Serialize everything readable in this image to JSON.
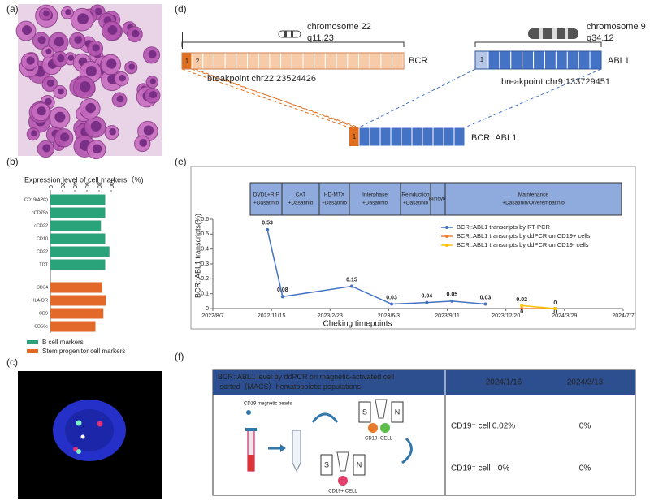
{
  "panel_labels": [
    "(a)",
    "(b)",
    "(c)",
    "(d)",
    "(e)",
    "(f)"
  ],
  "chart_data": [
    {
      "type": "hbar",
      "title": "Expression level of cell markers（%)",
      "categories": [
        "CD19(APC)",
        "cCD79a",
        "cCD22",
        "CD10",
        "CD22",
        "TDT",
        "CD34",
        "HLA-DR",
        "CD9",
        "CD56c"
      ],
      "series": [
        {
          "name": "B cell markers",
          "color": "#2aa37a",
          "values": [
            90,
            90,
            83,
            90,
            97,
            90,
            null,
            null,
            null,
            null
          ]
        },
        {
          "name": "Stem progenitor cell markers",
          "color": "#e2692a",
          "values": [
            null,
            null,
            null,
            null,
            null,
            null,
            85,
            91,
            87,
            74
          ]
        }
      ],
      "xlim": [
        0,
        100
      ],
      "xticks": [
        0,
        20,
        40,
        60,
        80,
        100
      ],
      "legend": "below"
    },
    {
      "type": "line",
      "ylabel": "BCR::ABL1 transcripts(%)",
      "xlabel": "Cheking timepoints",
      "x": [
        "2022/11/8",
        "2022/12/4",
        "2023/4/1",
        "2023/6/8",
        "2023/8/7",
        "2023/9/19",
        "2023/11/15",
        "2024/1/16",
        "2024/3/13"
      ],
      "series": [
        {
          "name": "BCR::ABL1 transcripts by RT-PCR",
          "color": "#4472c4",
          "values": [
            0.53,
            0.08,
            0.15,
            0.03,
            0.04,
            0.05,
            0.03,
            null,
            null
          ]
        },
        {
          "name": "BCR::ABL1 transcripts by ddPCR on CD19+ cells",
          "color": "#ed7d31",
          "values": [
            null,
            null,
            null,
            null,
            null,
            null,
            null,
            0,
            0
          ]
        },
        {
          "name": "BCR::ABL1 transcripts by ddPCR on CD19-  cells",
          "color": "#ffc000",
          "values": [
            null,
            null,
            null,
            null,
            null,
            null,
            null,
            0.02,
            0
          ]
        }
      ],
      "xlim": [
        "2022/8/7",
        "2024/7/7"
      ],
      "xticks": [
        "2022/8/7",
        "2022/11/15",
        "2023/2/23",
        "2023/6/3",
        "2023/9/11",
        "2023/12/20",
        "2024/3/29",
        "2024/7/7"
      ],
      "ylim": [
        0,
        0.6
      ],
      "yticks": [
        0,
        0.1,
        0.2,
        0.3,
        0.4,
        0.5,
        0.6
      ],
      "legend": "upper right",
      "treatments": [
        {
          "lines": [
            "DVDL+RIF",
            "+Dasatinib"
          ]
        },
        {
          "lines": [
            "CAT",
            "+Dasatinib"
          ]
        },
        {
          "lines": [
            "HD-MTX",
            "+Dasatinib"
          ]
        },
        {
          "lines": [
            "Interphase",
            "+Dasatinib"
          ]
        },
        {
          "lines": [
            "Reinduction",
            "+Dasatinib"
          ]
        },
        {
          "lines": [
            "Blincyto"
          ]
        },
        {
          "lines": [
            "Maintenance",
            "+Dasatinib/Olverembatinib"
          ]
        }
      ]
    }
  ],
  "diagram": {
    "chr22": "chromosome 22",
    "chr22_band": "q11.23",
    "bcr": "BCR",
    "bcr_break": "breakpoint chr22:23524426",
    "chr9": "chromosome 9",
    "chr9_band": "q34.12",
    "abl1": "ABL1",
    "abl1_break": "breakpoint chr9:133729451",
    "fusion": "BCR::ABL1",
    "exon1": "1",
    "exon2": "2"
  },
  "table": {
    "title": "BCR::ABL1 level by ddPCR on magnetic-activated cell sorted（MACS）hematopoietic populations",
    "columns": [
      "2024/1/16",
      "2024/3/13"
    ],
    "rows": [
      [
        "CD19⁻ cell",
        "0.02%",
        "0%"
      ],
      [
        "CD19⁺ cell",
        "0%",
        "0%"
      ]
    ],
    "illustration": {
      "beads": "CD19 magnetic beads",
      "magnet_s": "S",
      "magnet_n": "N",
      "neg_cell": "CD19- CELL",
      "pos_cell": "CD19+ CELL"
    }
  }
}
